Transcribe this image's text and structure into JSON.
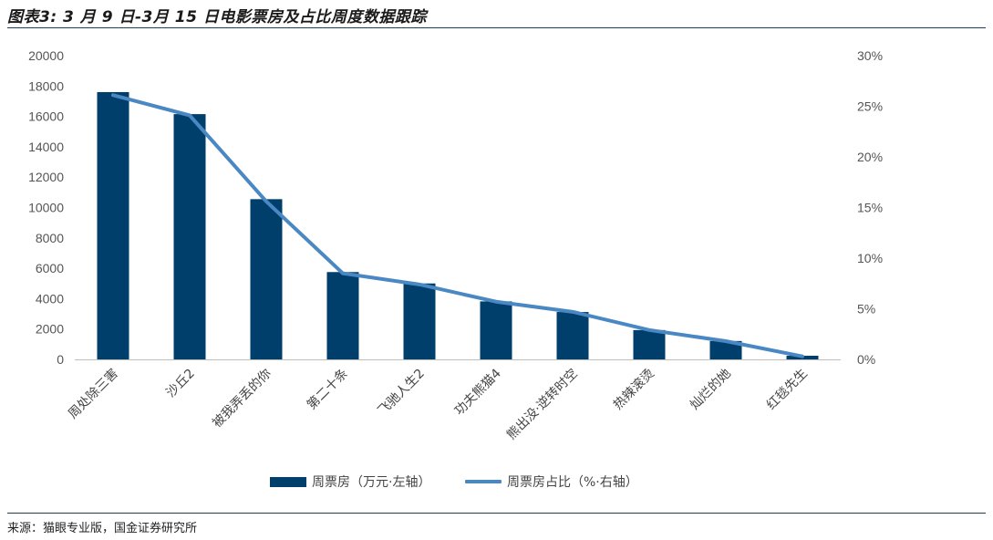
{
  "header": {
    "title": "图表3: 3 月 9 日-3月 15 日电影票房及占比周度数据跟踪"
  },
  "footer": {
    "source": "来源：猫眼专业版，国金证券研究所"
  },
  "colors": {
    "bar": "#003f6b",
    "line": "#4a88c4",
    "rule": "#1f3e5a"
  },
  "chart_data": {
    "type": "bar",
    "categories": [
      "周处除三害",
      "沙丘2",
      "被我弄丢的你",
      "第二十条",
      "飞驰人生2",
      "功夫熊猫4",
      "熊出没·逆转时空",
      "热辣滚烫",
      "灿烂的她",
      "红毯先生"
    ],
    "series": [
      {
        "name": "周票房（万元·左轴）",
        "type": "bar",
        "axis": "left",
        "values": [
          17600,
          16150,
          10550,
          5750,
          5000,
          3820,
          3120,
          1930,
          1210,
          240
        ]
      },
      {
        "name": "周票房占比（%·右轴）",
        "type": "line",
        "axis": "right",
        "values": [
          26.1,
          24.1,
          15.6,
          8.5,
          7.4,
          5.7,
          4.7,
          2.9,
          1.8,
          0.3
        ]
      }
    ],
    "y_left": {
      "lim": [
        0,
        20000
      ],
      "ticks": [
        "0",
        "2000",
        "4000",
        "6000",
        "8000",
        "10000",
        "12000",
        "14000",
        "16000",
        "18000",
        "20000"
      ]
    },
    "y_right": {
      "lim": [
        0,
        30
      ],
      "ticks": [
        "0%",
        "5%",
        "10%",
        "15%",
        "20%",
        "25%",
        "30%"
      ]
    },
    "grid": false,
    "legend_position": "bottom"
  }
}
